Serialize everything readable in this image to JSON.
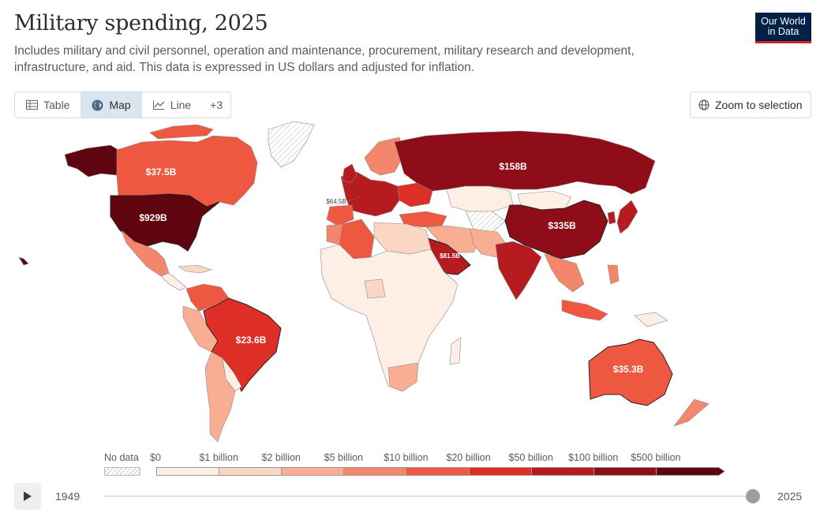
{
  "title": "Military spending, 2025",
  "subtitle": "Includes military and civil personnel, operation and maintenance, procurement, military research and development, infrastructure, and aid. This data is expressed in US dollars and adjusted for inflation.",
  "logo": {
    "line1": "Our World",
    "line2": "in Data"
  },
  "tabs": [
    {
      "label": "Table",
      "icon": "table-icon",
      "active": false
    },
    {
      "label": "Map",
      "icon": "globe-icon",
      "active": true
    },
    {
      "label": "Line",
      "icon": "line-chart-icon",
      "active": false
    },
    {
      "label": "+3",
      "icon": "",
      "active": false
    }
  ],
  "zoom_button": "Zoom to selection",
  "map_labels": {
    "usa": "$929B",
    "canada": "$37.5B",
    "russia": "$158B",
    "china": "$335B",
    "brazil": "$23.6B",
    "australia": "$35.3B",
    "saudi": "$81.5B",
    "europe": "$64.5B"
  },
  "legend": {
    "no_data": "No data",
    "ticks": [
      "$0",
      "$1 billion",
      "$2 billion",
      "$5 billion",
      "$10 billion",
      "$20 billion",
      "$50 billion",
      "$100 billion",
      "$500 billion"
    ],
    "colors": [
      "#fdeee6",
      "#fbd6c4",
      "#f9ae93",
      "#f4866b",
      "#ef5840",
      "#de2f27",
      "#b61c1f",
      "#8f0d18",
      "#5e0510"
    ]
  },
  "timeline": {
    "start": "1949",
    "end": "2025",
    "current": "2025"
  }
}
